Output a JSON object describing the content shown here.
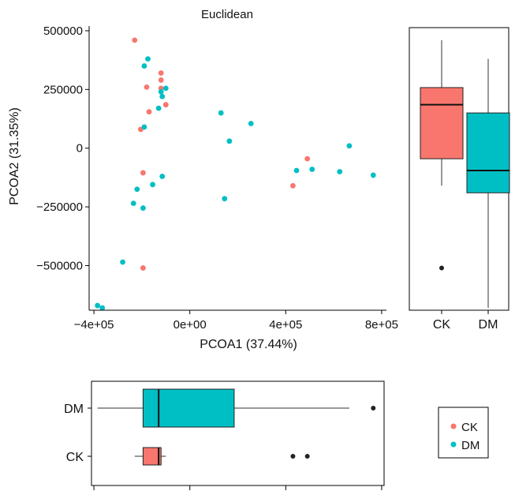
{
  "chart_data": [
    {
      "type": "scatter",
      "title": "Euclidean",
      "xlabel": "PCOA1 (37.44%)",
      "ylabel": "PCOA2 (31.35%)",
      "xlim": [
        -420000,
        820000
      ],
      "ylim": [
        -690000,
        520000
      ],
      "x_ticks": [
        -400000,
        0,
        400000,
        800000
      ],
      "x_tick_labels": [
        "-4e+05",
        "0e+00",
        "4e+05",
        "8e+05"
      ],
      "y_ticks": [
        500000,
        250000,
        0,
        -250000,
        -500000
      ],
      "y_tick_labels": [
        "500000",
        "250000",
        "0",
        "-250000",
        "-500000"
      ],
      "grid": false,
      "series": [
        {
          "name": "CK",
          "color": "#F8766D",
          "points": [
            [
              -230000,
              460000
            ],
            [
              -120000,
              320000
            ],
            [
              -120000,
              290000
            ],
            [
              -180000,
              260000
            ],
            [
              -120000,
              255000
            ],
            [
              -100000,
              185000
            ],
            [
              -170000,
              155000
            ],
            [
              -205000,
              80000
            ],
            [
              -195000,
              -105000
            ],
            [
              -195000,
              -510000
            ],
            [
              430000,
              -160000
            ],
            [
              490000,
              -45000
            ]
          ]
        },
        {
          "name": "DM",
          "color": "#00BFC4",
          "points": [
            [
              -175000,
              380000
            ],
            [
              -190000,
              350000
            ],
            [
              -100000,
              255000
            ],
            [
              -120000,
              240000
            ],
            [
              -115000,
              220000
            ],
            [
              -130000,
              170000
            ],
            [
              -190000,
              90000
            ],
            [
              130000,
              150000
            ],
            [
              255000,
              105000
            ],
            [
              165000,
              30000
            ],
            [
              665000,
              10000
            ],
            [
              -115000,
              -120000
            ],
            [
              -155000,
              -155000
            ],
            [
              -220000,
              -175000
            ],
            [
              -235000,
              -235000
            ],
            [
              -195000,
              -255000
            ],
            [
              145000,
              -215000
            ],
            [
              445000,
              -95000
            ],
            [
              510000,
              -90000
            ],
            [
              625000,
              -100000
            ],
            [
              765000,
              -115000
            ],
            [
              -280000,
              -485000
            ],
            [
              -385000,
              -670000
            ],
            [
              -365000,
              -680000
            ]
          ]
        }
      ]
    },
    {
      "type": "boxplot",
      "orientation": "vertical",
      "axis": "PCOA2",
      "categories": [
        "CK",
        "DM"
      ],
      "ylim": [
        -690000,
        520000
      ],
      "boxes": [
        {
          "name": "CK",
          "color": "#F8766D",
          "whisker_low": -160000,
          "q1": -45000,
          "median": 185000,
          "q3": 258000,
          "whisker_high": 460000,
          "outliers": [
            -510000
          ]
        },
        {
          "name": "DM",
          "color": "#00BFC4",
          "whisker_low": -680000,
          "q1": -190000,
          "median": -95000,
          "q3": 150000,
          "whisker_high": 380000,
          "outliers": []
        }
      ]
    },
    {
      "type": "boxplot",
      "orientation": "horizontal",
      "axis": "PCOA1",
      "categories": [
        "DM",
        "CK"
      ],
      "xlim": [
        -420000,
        820000
      ],
      "x_ticks": [
        -400000,
        0,
        400000,
        800000
      ],
      "boxes": [
        {
          "name": "DM",
          "color": "#00BFC4",
          "whisker_low": -385000,
          "q1": -195000,
          "median": -130000,
          "q3": 185000,
          "whisker_high": 665000,
          "outliers": [
            765000
          ]
        },
        {
          "name": "CK",
          "color": "#F8766D",
          "whisker_low": -230000,
          "q1": -195000,
          "median": -130000,
          "q3": -120000,
          "whisker_high": -100000,
          "outliers": [
            430000,
            490000
          ]
        }
      ]
    }
  ],
  "legend": {
    "position": "right",
    "entries": [
      {
        "label": "CK",
        "color": "#F8766D"
      },
      {
        "label": "DM",
        "color": "#00BFC4"
      }
    ]
  }
}
